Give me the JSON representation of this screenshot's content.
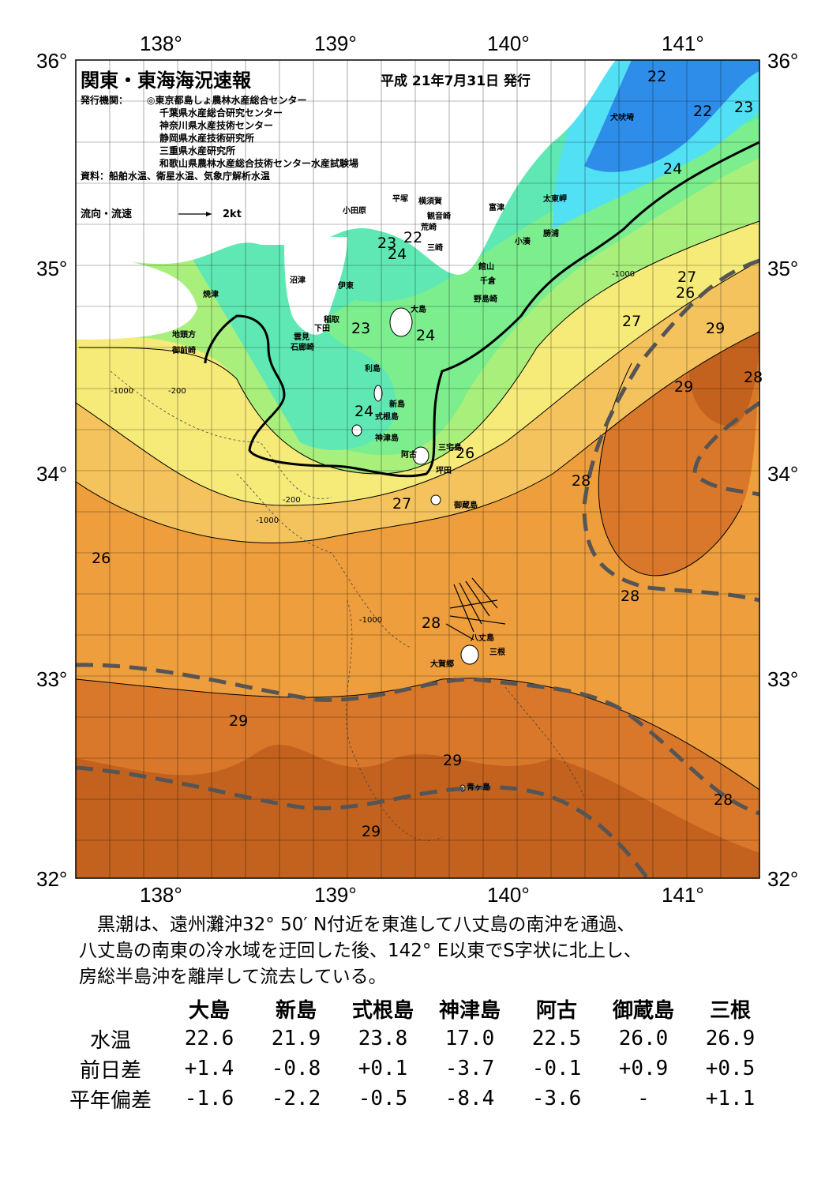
{
  "header": {
    "title": "関東・東海海況速報",
    "date": "平成 21年7月31日 発行",
    "issuer_label": "発行機関：",
    "issuers": [
      "◎東京都島しょ農林水産総合センター",
      "千葉県水産総合研究センター",
      "神奈川県水産技術センター",
      "静岡県水産技術研究所",
      "三重県水産研究所",
      "和歌山県農林水産総合技術センター水産試験場"
    ],
    "sources": "資料：船舶水温、衛星水温、気象庁解析水温",
    "legend_label": "流向・流速",
    "legend_speed": "2kt"
  },
  "axes": {
    "lon_labels": [
      "138°",
      "139°",
      "140°",
      "141°"
    ],
    "lat_labels": [
      "36°",
      "35°",
      "34°",
      "33°",
      "32°"
    ]
  },
  "places": [
    {
      "name": "犬吠埼"
    },
    {
      "name": "太東岬"
    },
    {
      "name": "勝浦"
    },
    {
      "name": "小湊"
    },
    {
      "name": "富津"
    },
    {
      "name": "横須賀"
    },
    {
      "name": "観音崎"
    },
    {
      "name": "荒崎"
    },
    {
      "name": "三崎"
    },
    {
      "name": "平塚"
    },
    {
      "name": "小田原"
    },
    {
      "name": "館山"
    },
    {
      "name": "千倉"
    },
    {
      "name": "野島崎"
    },
    {
      "name": "沼津"
    },
    {
      "name": "伊東"
    },
    {
      "name": "焼津"
    },
    {
      "name": "稲取"
    },
    {
      "name": "下田"
    },
    {
      "name": "雲見"
    },
    {
      "name": "石廊崎"
    },
    {
      "name": "地頭方"
    },
    {
      "name": "御前崎"
    },
    {
      "name": "大島"
    },
    {
      "name": "利島"
    },
    {
      "name": "新島"
    },
    {
      "name": "式根島"
    },
    {
      "name": "神津島"
    },
    {
      "name": "三宅島"
    },
    {
      "name": "阿古"
    },
    {
      "name": "坪田"
    },
    {
      "name": "御蔵島"
    },
    {
      "name": "八丈島"
    },
    {
      "name": "三根"
    },
    {
      "name": "大賀郷"
    },
    {
      "name": "青ヶ島"
    }
  ],
  "isotherm_labels": [
    {
      "v": "22"
    },
    {
      "v": "22"
    },
    {
      "v": "23"
    },
    {
      "v": "24"
    },
    {
      "v": "23"
    },
    {
      "v": "22"
    },
    {
      "v": "24"
    },
    {
      "v": "23"
    },
    {
      "v": "24"
    },
    {
      "v": "24"
    },
    {
      "v": "26"
    },
    {
      "v": "27"
    },
    {
      "v": "27"
    },
    {
      "v": "26"
    },
    {
      "v": "27"
    },
    {
      "v": "29"
    },
    {
      "v": "29"
    },
    {
      "v": "28"
    },
    {
      "v": "28"
    },
    {
      "v": "26"
    },
    {
      "v": "28"
    },
    {
      "v": "28"
    },
    {
      "v": "29"
    },
    {
      "v": "29"
    },
    {
      "v": "28"
    },
    {
      "v": "29"
    }
  ],
  "depth_labels": [
    "-200",
    "-1000"
  ],
  "summary": [
    "　黒潮は、遠州灘沖32° 50′ N付近を東進して八丈島の南沖を通過、",
    "八丈島の南東の冷水域を迂回した後、142° E以東でS字状に北上し、",
    "房総半島沖を離岸して流去している。"
  ],
  "table": {
    "columns": [
      "大島",
      "新島",
      "式根島",
      "神津島",
      "阿古",
      "御蔵島",
      "三根"
    ],
    "rows": [
      {
        "label": "水温",
        "values": [
          "22.6",
          "21.9",
          "23.8",
          "17.0",
          "22.5",
          "26.0",
          "26.9"
        ]
      },
      {
        "label": "前日差",
        "values": [
          "+1.4",
          "-0.8",
          "+0.1",
          "-3.7",
          "-0.1",
          "+0.9",
          "+0.5"
        ]
      },
      {
        "label": "平年偏差",
        "values": [
          "-1.6",
          "-2.2",
          "-0.5",
          "-8.4",
          "-3.6",
          "-",
          "+1.1"
        ]
      }
    ]
  },
  "colors": {
    "cold": "#2e8de8",
    "cyan": "#52e0f5",
    "teal": "#5fe8b4",
    "green": "#7cee8e",
    "lightgreen": "#a8ef7c",
    "yellow": "#f6ea78",
    "lightorange": "#f5c35e",
    "orange": "#ee9e3c",
    "darkorange": "#d9782a",
    "brown": "#c2621e",
    "kuroshio_axis": "#555555"
  }
}
